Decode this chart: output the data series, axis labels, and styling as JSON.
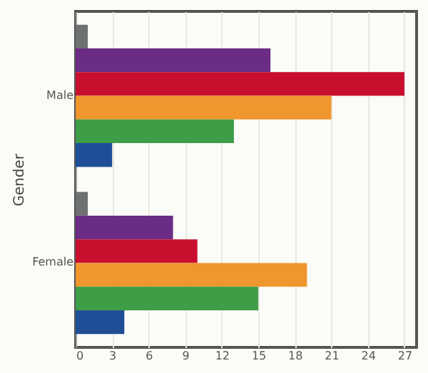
{
  "chart_data": {
    "type": "bar",
    "orientation": "horizontal",
    "ylabel": "Gender",
    "categories": [
      "Male",
      "Female"
    ],
    "series": [
      {
        "color": "#6d7170",
        "values": [
          1,
          1
        ]
      },
      {
        "color": "#6b2c85",
        "values": [
          16,
          8
        ]
      },
      {
        "color": "#c8102e",
        "values": [
          27,
          10
        ]
      },
      {
        "color": "#f0962e",
        "values": [
          21,
          19
        ]
      },
      {
        "color": "#3e9e48",
        "values": [
          13,
          15
        ]
      },
      {
        "color": "#1f4e96",
        "values": [
          3,
          4
        ]
      }
    ],
    "xlim": [
      0,
      28
    ],
    "xticks": [
      0,
      3,
      6,
      9,
      12,
      15,
      18,
      21,
      24,
      27
    ],
    "grid": "x"
  }
}
